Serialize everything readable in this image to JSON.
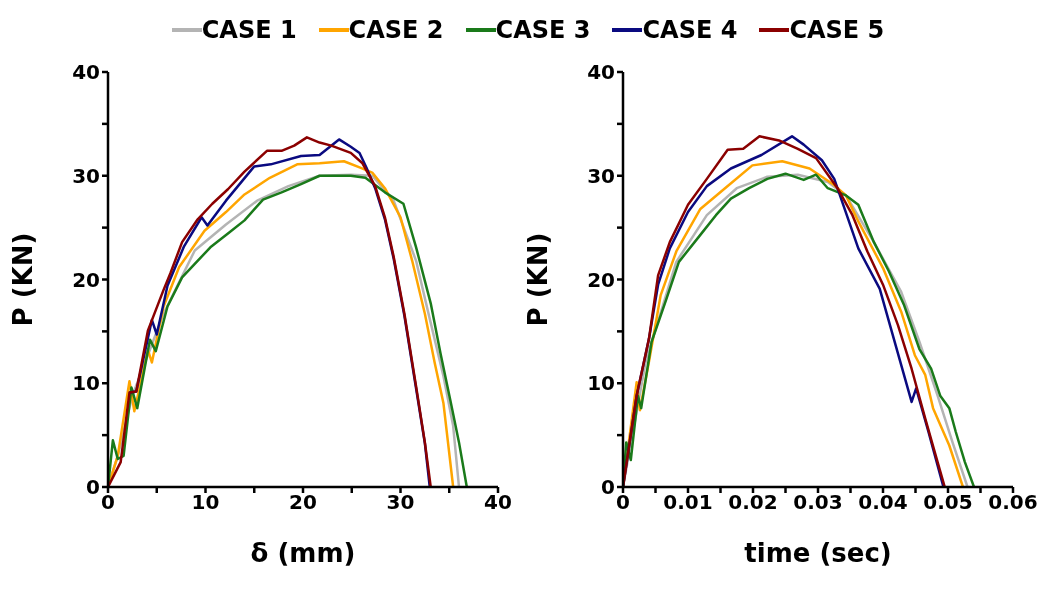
{
  "chart_data": [
    {
      "type": "line",
      "xlabel": "δ (mm)",
      "ylabel": "P (KN)",
      "legend": "top",
      "marker": "none",
      "line_style": "solid",
      "grid": false,
      "xlim": [
        0,
        40
      ],
      "xticks": [
        0,
        {
          "value": 5,
          "label": null
        },
        10,
        {
          "value": 15,
          "label": null
        },
        20,
        {
          "value": 25,
          "label": null
        },
        30,
        {
          "value": 35,
          "label": null
        },
        40
      ],
      "ylim": [
        0,
        40
      ],
      "yticks": [
        0,
        {
          "value": 5,
          "label": null
        },
        10,
        {
          "value": 15,
          "label": null
        },
        20,
        {
          "value": 25,
          "label": null
        },
        30,
        {
          "value": 35,
          "label": null
        },
        40
      ],
      "series": [
        {
          "name": "CASE 1",
          "color": "#b4b4b4",
          "x": [
            0,
            1,
            2.5,
            5.7,
            8.9,
            12.1,
            15.3,
            18.5,
            21.7,
            24.9,
            27.1,
            29.3,
            31.6,
            32.8,
            34.4,
            35.4,
            36
          ],
          "values": [
            0,
            3,
            8.8,
            16.7,
            22.8,
            25.3,
            27.6,
            29,
            30,
            30.1,
            30,
            27.6,
            21.8,
            17,
            10.7,
            5.9,
            0
          ]
        },
        {
          "name": "CASE 2",
          "color": "#ffa500",
          "x": [
            0,
            1,
            2.2,
            2.7,
            4.1,
            4.5,
            5.7,
            7.3,
            9.9,
            12.1,
            14,
            16.6,
            19.4,
            21.7,
            24.2,
            25.8,
            27.1,
            28.4,
            30,
            31.2,
            32.5,
            33.5,
            34.4,
            35.4
          ],
          "values": [
            0,
            3,
            10.2,
            7.3,
            13.2,
            12,
            17.4,
            21.2,
            24.7,
            26.5,
            28.2,
            29.8,
            31.1,
            31.2,
            31.4,
            30.8,
            30.3,
            28.8,
            26,
            21.8,
            16.7,
            12,
            8.1,
            0
          ]
        },
        {
          "name": "CASE 3",
          "color": "#1a7a1a",
          "x": [
            0,
            0.5,
            1,
            1.6,
            2.4,
            3,
            4.3,
            4.9,
            6.1,
            7.6,
            8.9,
            10.5,
            12.4,
            14,
            15.9,
            17.8,
            19.8,
            21.7,
            23.3,
            24.9,
            26.4,
            28.4,
            30.3,
            31.6,
            33.1,
            34.1,
            35.1,
            36,
            36.8
          ],
          "values": [
            0,
            4.5,
            2.7,
            3,
            9.6,
            7.6,
            14.2,
            13.1,
            17.4,
            20.2,
            21.5,
            23.1,
            24.5,
            25.7,
            27.7,
            28.4,
            29.2,
            30,
            30,
            30,
            29.8,
            28.4,
            27.3,
            23.1,
            17.7,
            12.9,
            8.4,
            4.3,
            0
          ]
        },
        {
          "name": "CASE 4",
          "color": "#0a0a80",
          "x": [
            2.2,
            2.9,
            4.5,
            5,
            6.1,
            7.8,
            9.6,
            10.2,
            12.1,
            15,
            16.7,
            19.8,
            21.7,
            23.7,
            24.9,
            25.8,
            26.5,
            27.4,
            28.4,
            29.3,
            30.4,
            31.6,
            32.5,
            33
          ],
          "values": [
            9.1,
            9.2,
            16.1,
            14.7,
            19.4,
            23.2,
            26,
            25.2,
            27.6,
            30.9,
            31.1,
            31.9,
            32,
            33.5,
            32.8,
            32.2,
            30.8,
            28.8,
            25.8,
            22,
            16.5,
            9.5,
            4.2,
            0
          ]
        },
        {
          "name": "CASE 5",
          "color": "#8b0000",
          "x": [
            0,
            1.3,
            2.2,
            2.9,
            4.1,
            5.7,
            6.4,
            7.6,
            9.2,
            10.7,
            12.3,
            14,
            16.3,
            17.8,
            19.1,
            20.4,
            21.7,
            22.9,
            24.9,
            26.1,
            27.4,
            28.4,
            29.3,
            30.4,
            31.6,
            32.5,
            33.1
          ],
          "values": [
            0,
            2.4,
            9.1,
            9.2,
            15.1,
            19,
            20.6,
            23.6,
            25.8,
            27.3,
            28.7,
            30.4,
            32.4,
            32.4,
            32.9,
            33.7,
            33.2,
            32.9,
            32.2,
            31.2,
            29,
            26,
            22.2,
            16.7,
            9.7,
            4.3,
            0
          ]
        }
      ]
    },
    {
      "type": "line",
      "xlabel": "time (sec)",
      "ylabel": "P (KN)",
      "marker": "none",
      "line_style": "solid",
      "grid": false,
      "xlim": [
        0,
        0.06
      ],
      "xticks": [
        0,
        {
          "value": 0.005,
          "label": null
        },
        0.01,
        {
          "value": 0.015,
          "label": null
        },
        0.02,
        {
          "value": 0.025,
          "label": null
        },
        0.03,
        {
          "value": 0.035,
          "label": null
        },
        0.04,
        {
          "value": 0.045,
          "label": null
        },
        0.05,
        {
          "value": 0.055,
          "label": null
        },
        0.06
      ],
      "ylim": [
        0,
        40
      ],
      "yticks": [
        0,
        {
          "value": 5,
          "label": null
        },
        10,
        {
          "value": 15,
          "label": null
        },
        20,
        {
          "value": 25,
          "label": null
        },
        30,
        {
          "value": 35,
          "label": null
        },
        40
      ],
      "series": [
        {
          "color": "#b4b4b4",
          "x": [
            0,
            0.0035,
            0.0082,
            0.0129,
            0.0175,
            0.0222,
            0.0269,
            0.0315,
            0.0343,
            0.0386,
            0.0428,
            0.0456,
            0.0484,
            0.0507,
            0.053
          ],
          "values": [
            0,
            12.1,
            21.7,
            26.2,
            28.8,
            29.9,
            30.1,
            29.4,
            28.1,
            23.6,
            18.8,
            14,
            8.8,
            4.3,
            0
          ]
        },
        {
          "color": "#ffa500",
          "x": [
            0,
            0.0021,
            0.0026,
            0.004,
            0.0058,
            0.0082,
            0.0119,
            0.0157,
            0.0199,
            0.0245,
            0.0287,
            0.0325,
            0.0343,
            0.0362,
            0.04,
            0.0428,
            0.0449,
            0.0465,
            0.0477,
            0.0502,
            0.0523
          ],
          "values": [
            0,
            10.1,
            7.4,
            12.1,
            18.5,
            22.7,
            26.8,
            28.8,
            31,
            31.4,
            30.7,
            29.1,
            28.1,
            25.6,
            21.1,
            16.9,
            12.7,
            10.8,
            7.6,
            4,
            0
          ]
        },
        {
          "color": "#1a7a1a",
          "x": [
            0,
            0.0005,
            0.0012,
            0.0023,
            0.0028,
            0.0044,
            0.0065,
            0.0086,
            0.0119,
            0.0143,
            0.0166,
            0.0194,
            0.0222,
            0.025,
            0.0278,
            0.0297,
            0.0315,
            0.0343,
            0.0362,
            0.0386,
            0.0409,
            0.0432,
            0.0456,
            0.0474,
            0.0488,
            0.0502,
            0.0512,
            0.0526,
            0.054
          ],
          "values": [
            0,
            4.3,
            2.6,
            8.8,
            7.6,
            14,
            17.8,
            21.7,
            24.3,
            26.2,
            27.8,
            28.8,
            29.7,
            30.2,
            29.6,
            30.1,
            28.8,
            28.1,
            27.2,
            23.6,
            20.8,
            17.6,
            13.3,
            11.4,
            8.8,
            7.6,
            5.3,
            2.4,
            0
          ]
        },
        {
          "color": "#0a0a80",
          "x": [
            0,
            0.0021,
            0.004,
            0.0054,
            0.0072,
            0.01,
            0.0129,
            0.0166,
            0.0213,
            0.026,
            0.0278,
            0.0306,
            0.0325,
            0.0362,
            0.0395,
            0.0444,
            0.0451,
            0.047,
            0.0493
          ],
          "values": [
            0,
            8.8,
            14.3,
            19.5,
            23,
            26.5,
            29,
            30.7,
            32,
            33.8,
            33,
            31.5,
            29.7,
            23,
            19.1,
            8.2,
            9.5,
            5.3,
            0
          ]
        },
        {
          "color": "#8b0000",
          "x": [
            0,
            0.0021,
            0.004,
            0.0054,
            0.0072,
            0.01,
            0.0129,
            0.0161,
            0.0185,
            0.021,
            0.024,
            0.0269,
            0.0297,
            0.033,
            0.0353,
            0.0376,
            0.04,
            0.0423,
            0.0444,
            0.0465,
            0.0484,
            0.0495
          ],
          "values": [
            0,
            8.8,
            14.3,
            20.4,
            23.6,
            27.2,
            29.7,
            32.5,
            32.6,
            33.8,
            33.4,
            32.6,
            31.7,
            28.8,
            26.2,
            22.7,
            19.5,
            15.6,
            11.4,
            6.6,
            2.4,
            0
          ]
        }
      ]
    }
  ]
}
